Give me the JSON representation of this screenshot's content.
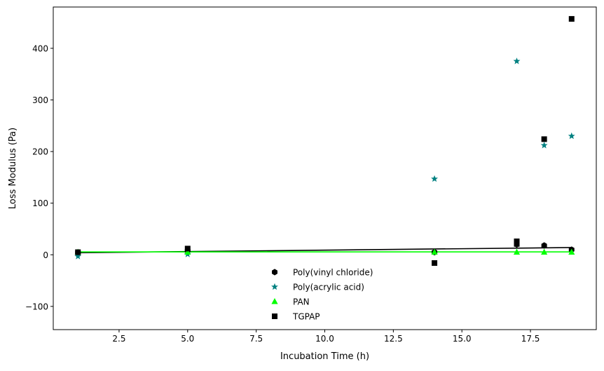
{
  "chart_data": {
    "type": "scatter",
    "title": "",
    "xlabel": "Incubation Time (h)",
    "ylabel": "Loss Modulus (Pa)",
    "xlim": [
      0.1,
      19.9
    ],
    "ylim": [
      -145,
      480
    ],
    "xticks": [
      2.5,
      5.0,
      7.5,
      10.0,
      12.5,
      15.0,
      17.5
    ],
    "xtick_labels": [
      "2.5",
      "5.0",
      "7.5",
      "10.0",
      "12.5",
      "15.0",
      "17.5"
    ],
    "yticks": [
      -100,
      0,
      100,
      200,
      300,
      400
    ],
    "ytick_labels": [
      "−100",
      "0",
      "100",
      "200",
      "300",
      "400"
    ],
    "grid": false,
    "legend_position": "lower-center",
    "series": [
      {
        "name": "Poly(vinyl chloride)",
        "marker": "hexagon",
        "color": "#000000",
        "x": [
          1,
          5,
          14,
          17,
          17,
          18,
          19
        ],
        "y": [
          4,
          8,
          5,
          20,
          22,
          18,
          10
        ]
      },
      {
        "name": "Poly(acrylic acid)",
        "marker": "star",
        "color": "#008080",
        "x": [
          1,
          5,
          14,
          17,
          18,
          19
        ],
        "y": [
          -3,
          1,
          147,
          375,
          212,
          230
        ]
      },
      {
        "name": "PAN",
        "marker": "triangle",
        "color": "#00ff00",
        "x": [
          1,
          5,
          14,
          17,
          18,
          19
        ],
        "y": [
          5,
          5,
          5,
          5,
          5,
          5
        ]
      },
      {
        "name": "TGPAP",
        "marker": "square",
        "color": "#000000",
        "x": [
          1,
          5,
          14,
          17,
          17,
          18,
          19
        ],
        "y": [
          5,
          12,
          -16,
          26,
          21,
          224,
          457
        ]
      }
    ],
    "fit_lines": [
      {
        "series": "Poly(vinyl chloride)",
        "color": "#000000",
        "x": [
          1,
          19
        ],
        "y": [
          4,
          14
        ]
      },
      {
        "series": "PAN",
        "color": "#00ff00",
        "x": [
          1,
          19
        ],
        "y": [
          5.5,
          5.5
        ]
      }
    ]
  }
}
